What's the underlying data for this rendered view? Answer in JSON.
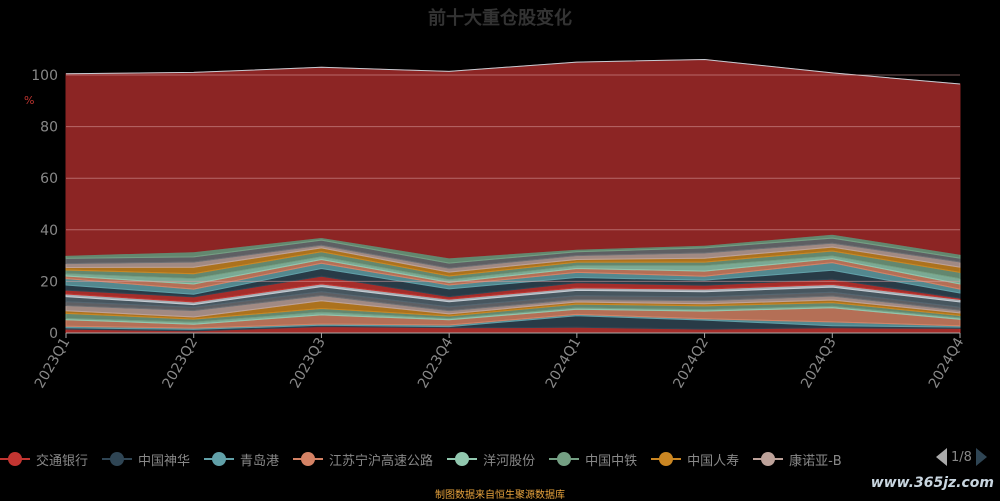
{
  "title": "前十大重仓股变化",
  "source_note": "制图数据来自恒生聚源数据库",
  "watermark": "www.365jz.com",
  "pager": {
    "text": "1/8"
  },
  "chart_data": {
    "type": "area",
    "title": "前十大重仓股变化",
    "ylabel": "%",
    "ylim": [
      0,
      100
    ],
    "yticks": [
      0,
      20,
      40,
      60,
      80,
      100
    ],
    "x": [
      "2023Q1",
      "2023Q2",
      "2023Q3",
      "2023Q4",
      "2024Q1",
      "2024Q2",
      "2024Q3",
      "2024Q4"
    ],
    "grid": true,
    "legend_position": "bottom",
    "series": [
      {
        "name": "交通银行",
        "color": "#c23531",
        "values": [
          1.5,
          0.8,
          2.5,
          2.0,
          2.2,
          1.5,
          2.0,
          1.8
        ]
      },
      {
        "name": "中国神华",
        "color": "#2f4554",
        "values": [
          0.5,
          0.6,
          0.5,
          0.5,
          4.5,
          3.5,
          0.8,
          0.5
        ]
      },
      {
        "name": "青岛港",
        "color": "#61a0a8",
        "values": [
          0.6,
          0.5,
          0.5,
          0.6,
          0.5,
          0.5,
          1.5,
          0.5
        ]
      },
      {
        "name": "江苏宁沪高速公路",
        "color": "#d48265",
        "values": [
          2.5,
          1.5,
          3.5,
          2.0,
          2.0,
          3.0,
          5.5,
          2.5
        ]
      },
      {
        "name": "洋河股份",
        "color": "#91c7ae",
        "values": [
          0.5,
          0.8,
          1.0,
          0.5,
          0.5,
          0.5,
          0.5,
          0.5
        ]
      },
      {
        "name": "中国中铁",
        "color": "#749f83",
        "values": [
          2.0,
          1.2,
          1.5,
          1.0,
          1.5,
          1.5,
          1.5,
          1.0
        ]
      },
      {
        "name": "中国人寿",
        "color": "#ca8622",
        "values": [
          1.0,
          0.8,
          3.0,
          0.8,
          0.8,
          0.8,
          1.0,
          1.0
        ]
      },
      {
        "name": "康诺亚-B",
        "color": "#bda29a",
        "values": [
          2.0,
          2.5,
          2.0,
          1.2,
          1.0,
          1.2,
          1.5,
          1.0
        ]
      },
      {
        "name": "",
        "color": "#6e7074",
        "values": [
          1.5,
          1.3,
          1.5,
          1.5,
          1.5,
          1.5,
          1.5,
          1.2
        ]
      },
      {
        "name": "",
        "color": "#546570",
        "values": [
          2.0,
          1.0,
          2.0,
          2.0,
          2.0,
          2.0,
          2.0,
          2.0
        ]
      },
      {
        "name": "",
        "color": "#c4ccd3",
        "values": [
          1.0,
          1.0,
          1.0,
          1.0,
          1.0,
          1.0,
          1.0,
          1.0
        ]
      },
      {
        "name": "",
        "color": "#c23531",
        "values": [
          1.5,
          2.0,
          3.0,
          1.0,
          2.0,
          1.5,
          2.0,
          0.5
        ]
      },
      {
        "name": "",
        "color": "#2f4554",
        "values": [
          2.0,
          1.0,
          3.0,
          3.0,
          2.0,
          2.0,
          3.5,
          2.0
        ]
      },
      {
        "name": "",
        "color": "#61a0a8",
        "values": [
          2.5,
          2.0,
          2.0,
          1.5,
          2.0,
          1.5,
          3.0,
          1.5
        ]
      },
      {
        "name": "",
        "color": "#d48265",
        "values": [
          1.0,
          2.0,
          1.5,
          1.0,
          1.5,
          2.0,
          1.5,
          2.0
        ]
      },
      {
        "name": "",
        "color": "#91c7ae",
        "values": [
          0.8,
          2.0,
          1.0,
          1.0,
          1.0,
          2.0,
          1.0,
          2.0
        ]
      },
      {
        "name": "",
        "color": "#749f83",
        "values": [
          1.5,
          2.0,
          2.0,
          1.5,
          1.5,
          1.5,
          2.0,
          2.5
        ]
      },
      {
        "name": "",
        "color": "#ca8622",
        "values": [
          1.0,
          2.5,
          1.5,
          1.5,
          1.0,
          1.5,
          1.5,
          2.0
        ]
      },
      {
        "name": "",
        "color": "#bda29a",
        "values": [
          1.5,
          2.0,
          1.0,
          1.5,
          1.5,
          2.0,
          1.5,
          2.0
        ]
      },
      {
        "name": "",
        "color": "#6e7074",
        "values": [
          2.0,
          2.0,
          2.0,
          2.0,
          1.5,
          2.0,
          2.0,
          1.5
        ]
      },
      {
        "name": "",
        "color": "#749f83",
        "values": [
          1.2,
          2.0,
          1.0,
          2.0,
          1.0,
          1.0,
          1.5,
          1.5
        ]
      },
      {
        "name": "",
        "color": "#8c2524",
        "values": [
          70.4,
          69.5,
          66.0,
          72.3,
          72.5,
          72.0,
          62.5,
          66.0
        ]
      },
      {
        "name": "",
        "color": "#c4ccd3",
        "values": [
          0.0,
          0.0,
          0.0,
          0.0,
          0.0,
          0.0,
          0.0,
          0.0
        ]
      }
    ]
  }
}
